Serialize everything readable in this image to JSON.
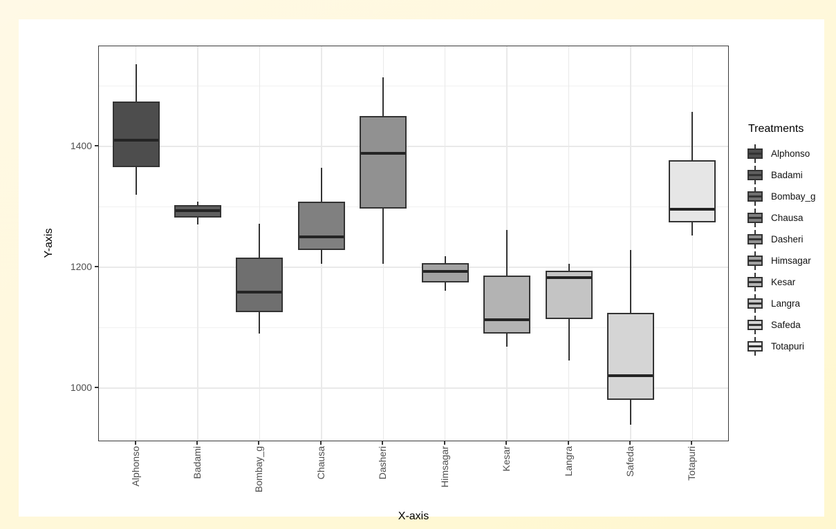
{
  "figure": {
    "frame_color": "#FFF8DC",
    "inner_background": "#FFFFFF"
  },
  "chart_data": {
    "type": "boxplot",
    "title": "",
    "xlabel": "X-axis",
    "ylabel": "Y-axis",
    "legend_title": "Treatments",
    "legend_position": "right",
    "grid": true,
    "ylim": [
      911,
      1566
    ],
    "y_major_ticks": [
      1000,
      1200,
      1400
    ],
    "y_minor_ticks": [
      1100,
      1300,
      1500
    ],
    "categories": [
      "Alphonso",
      "Badami",
      "Bombay_g",
      "Chausa",
      "Dasheri",
      "Himsagar",
      "Kesar",
      "Langra",
      "Safeda",
      "Totapuri"
    ],
    "series": [
      {
        "name": "Alphonso",
        "whisker_low": 1320,
        "q1": 1366,
        "median": 1411,
        "q3": 1474,
        "whisker_high": 1536,
        "fill": "#4D4D4D"
      },
      {
        "name": "Badami",
        "whisker_low": 1271,
        "q1": 1283,
        "median": 1294,
        "q3": 1303,
        "whisker_high": 1309,
        "fill": "#5E5E5E"
      },
      {
        "name": "Bombay_g",
        "whisker_low": 1090,
        "q1": 1126,
        "median": 1159,
        "q3": 1216,
        "whisker_high": 1272,
        "fill": "#6F6F6F"
      },
      {
        "name": "Chausa",
        "whisker_low": 1206,
        "q1": 1229,
        "median": 1250,
        "q3": 1309,
        "whisker_high": 1365,
        "fill": "#808080"
      },
      {
        "name": "Dasheri",
        "whisker_low": 1206,
        "q1": 1297,
        "median": 1389,
        "q3": 1451,
        "whisker_high": 1514,
        "fill": "#919191"
      },
      {
        "name": "Himsagar",
        "whisker_low": 1161,
        "q1": 1175,
        "median": 1193,
        "q3": 1207,
        "whisker_high": 1219,
        "fill": "#A2A2A2"
      },
      {
        "name": "Kesar",
        "whisker_low": 1069,
        "q1": 1091,
        "median": 1113,
        "q3": 1186,
        "whisker_high": 1262,
        "fill": "#B3B3B3"
      },
      {
        "name": "Langra",
        "whisker_low": 1046,
        "q1": 1114,
        "median": 1183,
        "q3": 1194,
        "whisker_high": 1206,
        "fill": "#C4C4C4"
      },
      {
        "name": "Safeda",
        "whisker_low": 939,
        "q1": 981,
        "median": 1021,
        "q3": 1125,
        "whisker_high": 1229,
        "fill": "#D5D5D5"
      },
      {
        "name": "Totapuri",
        "whisker_low": 1253,
        "q1": 1274,
        "median": 1296,
        "q3": 1377,
        "whisker_high": 1457,
        "fill": "#E6E6E6"
      }
    ],
    "box_line_color": "#333333",
    "gridline_color": "#E9E9E9"
  }
}
